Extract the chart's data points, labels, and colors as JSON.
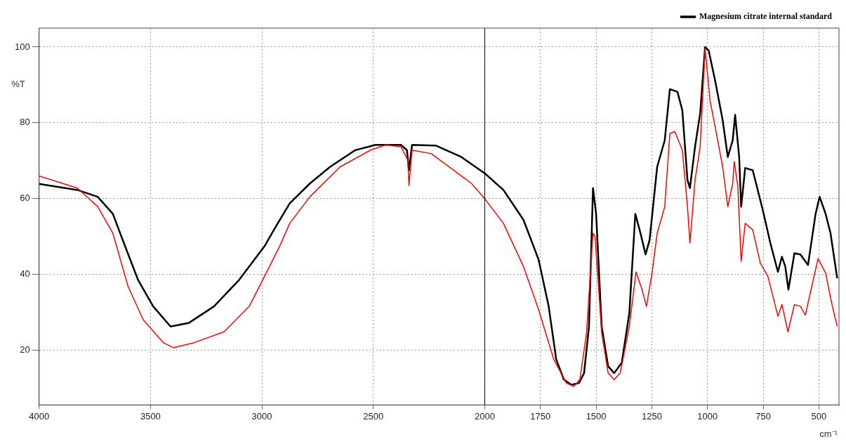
{
  "chart_data": {
    "type": "line",
    "xlabel": "cm⁻¹",
    "ylabel": "%T",
    "xlim": [
      4000,
      410
    ],
    "ylim": [
      5.6,
      105
    ],
    "xticks": [
      4000,
      3500,
      3000,
      2500,
      2000,
      1750,
      1500,
      1250,
      1000,
      750,
      500
    ],
    "yticks": [
      20,
      40,
      60,
      80,
      100
    ],
    "grid": true,
    "legend": "top right",
    "marker": "none",
    "line_style": "solid",
    "ref_lines": [
      {
        "axis": "x",
        "value": 2000,
        "color": "#000000"
      }
    ],
    "series": [
      {
        "color": "#ff0000",
        "x": [
          4000,
          3828,
          3737,
          3669,
          3601,
          3533,
          3442,
          3397,
          3306,
          3170,
          3057,
          2966,
          2921,
          2875,
          2785,
          2649,
          2513,
          2444,
          2376,
          2345,
          2340,
          2326,
          2240,
          2059,
          2000,
          1916,
          1826,
          1758,
          1690,
          1634,
          1600,
          1573,
          1543,
          1514,
          1505,
          1475,
          1446,
          1419,
          1392,
          1351,
          1321,
          1294,
          1274,
          1249,
          1226,
          1192,
          1169,
          1147,
          1113,
          1090,
          1079,
          1056,
          1033,
          1011,
          989,
          966,
          932,
          909,
          887,
          880,
          864,
          849,
          831,
          797,
          763,
          729,
          684,
          666,
          639,
          610,
          583,
          561,
          504,
          470,
          443,
          418
        ],
        "values": [
          66,
          62.8,
          57.9,
          50.9,
          36.9,
          28.1,
          22,
          20.7,
          22,
          24.9,
          31.6,
          42.1,
          47.4,
          53.5,
          60.5,
          68.4,
          72.8,
          74.2,
          73.7,
          70.2,
          63.5,
          72.8,
          71.9,
          64,
          60,
          53.5,
          42.1,
          30.7,
          17.6,
          11.4,
          10.5,
          12.3,
          24.6,
          50.9,
          50,
          24.6,
          14,
          12.3,
          14,
          26.3,
          40.7,
          36,
          31.6,
          40.4,
          50.9,
          57.9,
          77.2,
          77.7,
          72.8,
          57.9,
          48.3,
          64.9,
          73.7,
          99.6,
          86,
          79,
          68.4,
          57.9,
          64,
          69.8,
          63.2,
          43.5,
          53.5,
          51.8,
          43,
          39.5,
          29,
          32.1,
          24.9,
          32.1,
          31.6,
          29.3,
          44.2,
          40.4,
          32.5,
          26.3
        ]
      },
      {
        "name": "Magnesium citrate internal standard",
        "color": "#000000",
        "x": [
          4000,
          3828,
          3737,
          3669,
          3624,
          3556,
          3488,
          3410,
          3329,
          3215,
          3102,
          2989,
          2934,
          2875,
          2785,
          2694,
          2581,
          2490,
          2376,
          2349,
          2340,
          2326,
          2218,
          2105,
          2000,
          1916,
          1826,
          1758,
          1713,
          1679,
          1645,
          1611,
          1577,
          1554,
          1532,
          1514,
          1500,
          1475,
          1446,
          1419,
          1385,
          1351,
          1324,
          1301,
          1278,
          1260,
          1226,
          1192,
          1169,
          1135,
          1113,
          1090,
          1079,
          1056,
          1033,
          1011,
          995,
          966,
          932,
          909,
          887,
          876,
          858,
          849,
          831,
          797,
          752,
          718,
          684,
          666,
          651,
          637,
          610,
          583,
          549,
          515,
          497,
          470,
          448,
          418
        ],
        "values": [
          63.9,
          62.3,
          60.5,
          56,
          49,
          38.6,
          31.6,
          26.3,
          27.2,
          31.6,
          38.6,
          47.4,
          53,
          58.8,
          64,
          68.4,
          72.8,
          74.2,
          74.2,
          72.8,
          67.5,
          74.2,
          74,
          71,
          66.7,
          62.3,
          54.4,
          43.9,
          31.6,
          17.6,
          12.3,
          10.9,
          11.4,
          14,
          26.3,
          62.8,
          56,
          26.3,
          15.8,
          14,
          16.7,
          29.8,
          56,
          50.9,
          45.3,
          49.1,
          68.4,
          75.4,
          88.9,
          88.2,
          83.3,
          64.9,
          62.8,
          73.7,
          82.5,
          100,
          99.1,
          91.2,
          80.7,
          71,
          75.4,
          82.1,
          71,
          57.9,
          68.1,
          67.5,
          57,
          48.3,
          40.7,
          44.7,
          42.1,
          36,
          45.6,
          45.3,
          42.5,
          56,
          60.5,
          56,
          50.9,
          39
        ]
      }
    ]
  }
}
